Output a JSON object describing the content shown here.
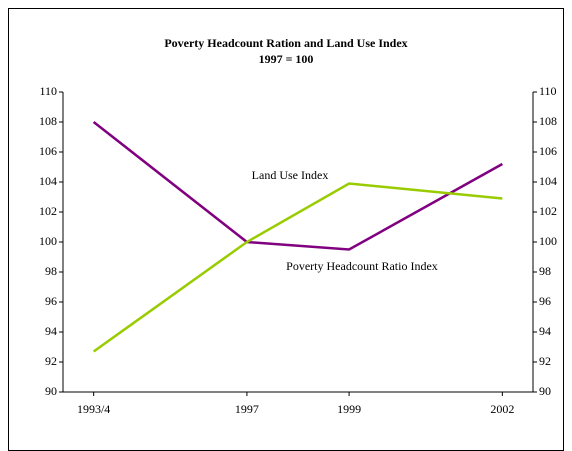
{
  "chart_data": {
    "type": "line",
    "title": "Poverty Headcount Ration and Land Use Index",
    "subtitle": "1997 = 100",
    "x": [
      1994,
      1997,
      1999,
      2002
    ],
    "xticks": [
      {
        "value": 1994,
        "label": "1993/4"
      },
      1997,
      1999,
      2002
    ],
    "xlim": [
      1993.4,
      2002.6
    ],
    "series": [
      {
        "name": "Poverty Headcount Ratio Index",
        "color": "#800080",
        "values": [
          108,
          100,
          99.5,
          105.2
        ]
      },
      {
        "name": "Land Use Index",
        "color": "#99cc00",
        "values": [
          92.7,
          100,
          103.9,
          102.9
        ]
      }
    ],
    "ylim": [
      90,
      110
    ],
    "yticks": [
      90,
      92,
      94,
      96,
      98,
      100,
      102,
      104,
      106,
      108,
      110
    ],
    "y2lim": [
      90,
      110
    ],
    "y2ticks": [
      90,
      92,
      94,
      96,
      98,
      100,
      102,
      104,
      106,
      108,
      110
    ]
  }
}
